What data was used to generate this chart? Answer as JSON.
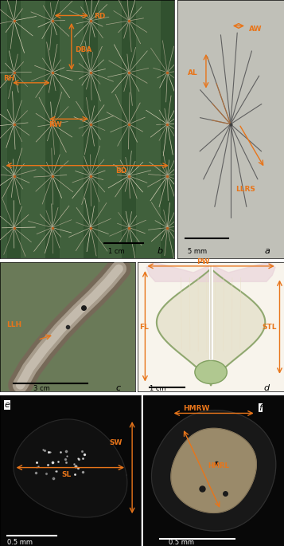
{
  "orange": "#E8751A",
  "lfs": 6.5,
  "pfs": 8,
  "sfs": 6,
  "panel_layout": {
    "b": [
      0.0,
      0.33,
      0.62,
      0.67
    ],
    "a": [
      0.62,
      0.52,
      0.38,
      0.48
    ],
    "c": [
      0.0,
      0.0,
      0.48,
      0.33
    ],
    "d": [
      0.48,
      0.0,
      0.52,
      0.33
    ],
    "e": [
      0.0,
      -0.41,
      0.5,
      0.41
    ],
    "f": [
      0.5,
      -0.41,
      0.5,
      0.41
    ]
  },
  "bg_b": "#4a6a44",
  "bg_a": "#c8c8c0",
  "bg_c": "#7a8a6a",
  "bg_d": "#f0ece4",
  "bg_e": "#0a0a0a",
  "bg_f": "#0a0a0a"
}
